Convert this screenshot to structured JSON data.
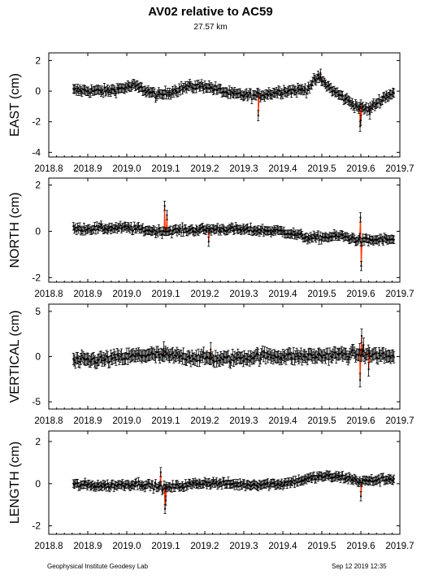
{
  "title": "AV02 relative to AC59",
  "subtitle": "27.57 km",
  "footer": {
    "left": "Geophysical Institute Geodesy Lab",
    "right": "Sep 12 2019 12:35"
  },
  "colors": {
    "points": "#000000",
    "offset_lines": "#ff3300",
    "axes": "#000000"
  },
  "chart_data": [
    {
      "type": "scatter",
      "ylabel": "EAST (cm)",
      "xlim": [
        2018.8,
        2019.7
      ],
      "ylim": [
        -4.3,
        2.5
      ],
      "xticks": [
        "2018.8",
        "2018.9",
        "2019.0",
        "2019.1",
        "2019.2",
        "2019.3",
        "2019.4",
        "2019.5",
        "2019.6",
        "2019.7"
      ],
      "yticks": [
        -4,
        -2,
        0,
        2
      ],
      "error_bars": true,
      "x_range": [
        2018.863,
        2019.685
      ],
      "trend": [
        {
          "x": 2018.863,
          "y": 0.05
        },
        {
          "x": 2018.95,
          "y": 0.0
        },
        {
          "x": 2019.02,
          "y": 0.35
        },
        {
          "x": 2019.08,
          "y": -0.3
        },
        {
          "x": 2019.15,
          "y": 0.25
        },
        {
          "x": 2019.2,
          "y": 0.35
        },
        {
          "x": 2019.27,
          "y": -0.2
        },
        {
          "x": 2019.33,
          "y": -0.3
        },
        {
          "x": 2019.4,
          "y": 0.0
        },
        {
          "x": 2019.46,
          "y": 0.1
        },
        {
          "x": 2019.49,
          "y": 0.9
        },
        {
          "x": 2019.53,
          "y": 0.0
        },
        {
          "x": 2019.59,
          "y": -1.0
        },
        {
          "x": 2019.62,
          "y": -1.2
        },
        {
          "x": 2019.66,
          "y": -0.4
        },
        {
          "x": 2019.685,
          "y": -0.1
        }
      ],
      "spikes": [
        {
          "x": 2019.337,
          "y": -1.6
        },
        {
          "x": 2019.497,
          "y": 1.1
        },
        {
          "x": 2019.598,
          "y": -2.3
        },
        {
          "x": 2019.623,
          "y": -1.5
        },
        {
          "x": 2019.6,
          "y": -1.9
        }
      ],
      "noise": 0.2
    },
    {
      "type": "scatter",
      "ylabel": "NORTH (cm)",
      "xlim": [
        2018.8,
        2019.7
      ],
      "ylim": [
        -2.2,
        2.3
      ],
      "xticks": [
        "2018.8",
        "2018.9",
        "2019.0",
        "2019.1",
        "2019.2",
        "2019.3",
        "2019.4",
        "2019.5",
        "2019.6",
        "2019.7"
      ],
      "yticks": [
        -2,
        0,
        2
      ],
      "error_bars": true,
      "x_range": [
        2018.863,
        2019.685
      ],
      "trend": [
        {
          "x": 2018.863,
          "y": 0.1
        },
        {
          "x": 2019.0,
          "y": 0.15
        },
        {
          "x": 2019.08,
          "y": 0.0
        },
        {
          "x": 2019.15,
          "y": 0.05
        },
        {
          "x": 2019.25,
          "y": 0.1
        },
        {
          "x": 2019.4,
          "y": 0.0
        },
        {
          "x": 2019.47,
          "y": -0.3
        },
        {
          "x": 2019.55,
          "y": -0.2
        },
        {
          "x": 2019.6,
          "y": -0.4
        },
        {
          "x": 2019.685,
          "y": -0.35
        }
      ],
      "spikes": [
        {
          "x": 2019.097,
          "y": 1.1
        },
        {
          "x": 2019.103,
          "y": 0.7
        },
        {
          "x": 2019.599,
          "y": 0.6
        },
        {
          "x": 2019.601,
          "y": -1.5
        },
        {
          "x": 2019.21,
          "y": -0.45
        }
      ],
      "noise": 0.12
    },
    {
      "type": "scatter",
      "ylabel": "VERTICAL (cm)",
      "xlim": [
        2018.8,
        2019.7
      ],
      "ylim": [
        -5.8,
        5.8
      ],
      "xticks": [
        "2018.8",
        "2018.9",
        "2019.0",
        "2019.1",
        "2019.2",
        "2019.3",
        "2019.4",
        "2019.5",
        "2019.6",
        "2019.7"
      ],
      "yticks": [
        -5,
        0,
        5
      ],
      "error_bars": true,
      "x_range": [
        2018.863,
        2019.685
      ],
      "trend": [
        {
          "x": 2018.863,
          "y": -0.5
        },
        {
          "x": 2018.95,
          "y": -0.3
        },
        {
          "x": 2019.05,
          "y": 0.2
        },
        {
          "x": 2019.15,
          "y": 0.0
        },
        {
          "x": 2019.25,
          "y": -0.3
        },
        {
          "x": 2019.35,
          "y": 0.1
        },
        {
          "x": 2019.45,
          "y": 0.0
        },
        {
          "x": 2019.55,
          "y": 0.2
        },
        {
          "x": 2019.6,
          "y": 0.3
        },
        {
          "x": 2019.685,
          "y": 0.0
        }
      ],
      "spikes": [
        {
          "x": 2019.598,
          "y": -2.6
        },
        {
          "x": 2019.602,
          "y": 2.3
        },
        {
          "x": 2019.607,
          "y": 1.3
        },
        {
          "x": 2019.62,
          "y": -1.4
        },
        {
          "x": 2019.095,
          "y": 0.9
        },
        {
          "x": 2019.215,
          "y": 0.8
        }
      ],
      "noise": 0.45
    },
    {
      "type": "scatter",
      "ylabel": "LENGTH (cm)",
      "xlim": [
        2018.8,
        2019.7
      ],
      "ylim": [
        -2.4,
        2.5
      ],
      "xticks": [
        "2018.8",
        "2018.9",
        "2019.0",
        "2019.1",
        "2019.2",
        "2019.3",
        "2019.4",
        "2019.5",
        "2019.6",
        "2019.7"
      ],
      "yticks": [
        -2,
        0,
        2
      ],
      "error_bars": true,
      "x_range": [
        2018.863,
        2019.685
      ],
      "trend": [
        {
          "x": 2018.863,
          "y": -0.05
        },
        {
          "x": 2018.95,
          "y": -0.1
        },
        {
          "x": 2019.03,
          "y": 0.0
        },
        {
          "x": 2019.1,
          "y": -0.2
        },
        {
          "x": 2019.2,
          "y": 0.05
        },
        {
          "x": 2019.3,
          "y": -0.05
        },
        {
          "x": 2019.4,
          "y": 0.0
        },
        {
          "x": 2019.5,
          "y": 0.35
        },
        {
          "x": 2019.56,
          "y": 0.3
        },
        {
          "x": 2019.6,
          "y": 0.1
        },
        {
          "x": 2019.685,
          "y": 0.25
        }
      ],
      "spikes": [
        {
          "x": 2019.098,
          "y": -1.2
        },
        {
          "x": 2019.1,
          "y": -0.8
        },
        {
          "x": 2019.6,
          "y": -0.6
        },
        {
          "x": 2019.087,
          "y": 0.55
        }
      ],
      "noise": 0.13
    }
  ]
}
